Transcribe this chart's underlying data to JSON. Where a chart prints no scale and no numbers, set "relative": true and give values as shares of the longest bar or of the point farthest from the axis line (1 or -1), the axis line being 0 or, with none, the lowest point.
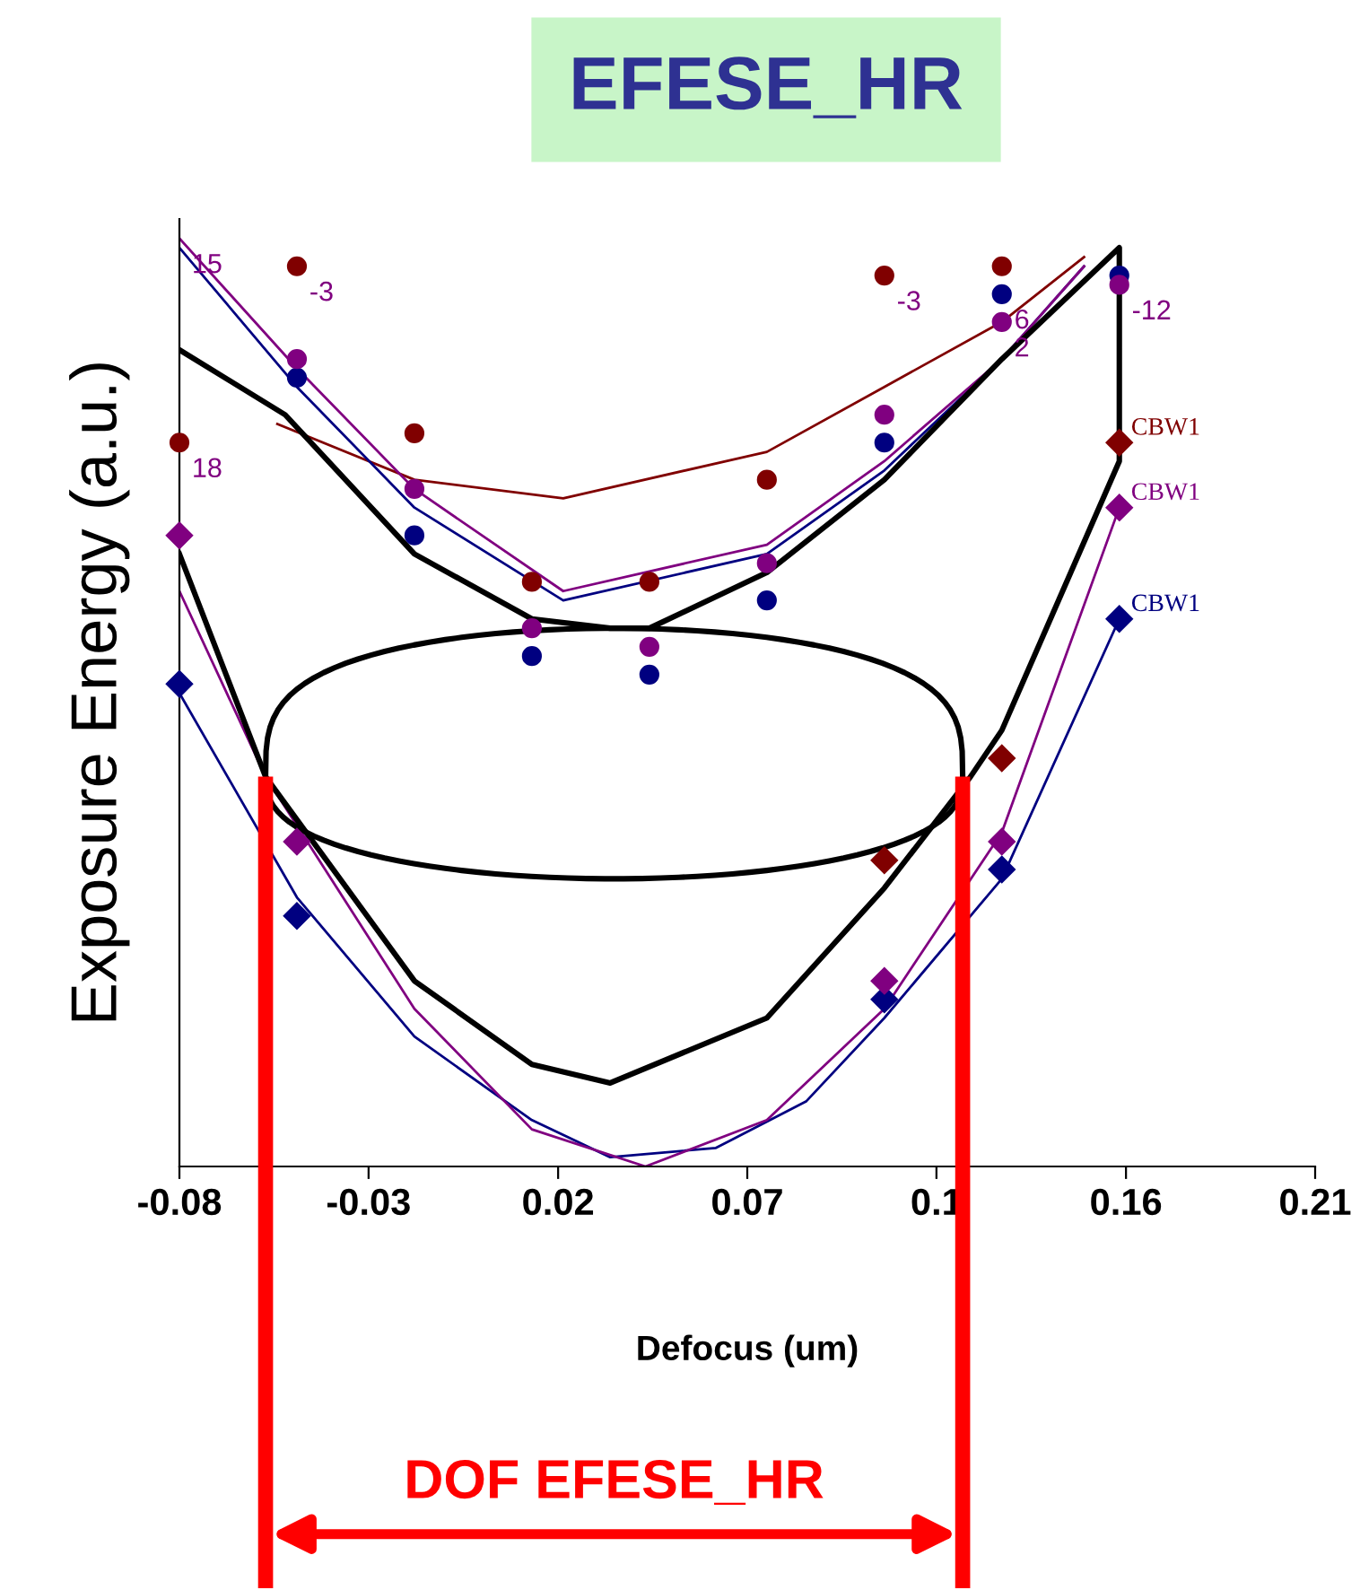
{
  "chart_data": {
    "type": "scatter",
    "title": "EFESE_HR",
    "xlabel": "Defocus (um)",
    "ylabel": "Exposure Energy (a.u.)",
    "relative": true,
    "xlim": [
      -0.08,
      0.21
    ],
    "xticks": [
      {
        "value": -0.08,
        "label": "-0.08"
      },
      {
        "value": -0.0317,
        "label": "-0.03"
      },
      {
        "value": 0.0167,
        "label": "0.02"
      },
      {
        "value": 0.065,
        "label": "0.07"
      },
      {
        "value": 0.1133,
        "label": "0.1"
      },
      {
        "value": 0.1617,
        "label": "0.16"
      },
      {
        "value": 0.21,
        "label": "0.21"
      }
    ],
    "tick_labels": "x",
    "series": [
      {
        "marker": "circle",
        "color": "#800000",
        "x": [
          -0.08,
          -0.05,
          -0.02,
          0.01,
          0.04,
          0.07,
          0.1,
          0.13
        ],
        "values": [
          0.78,
          0.97,
          0.79,
          0.63,
          0.63,
          0.74,
          0.96,
          0.97
        ]
      },
      {
        "marker": "circle",
        "color": "#000080",
        "x": [
          -0.05,
          -0.02,
          0.01,
          0.04,
          0.07,
          0.1,
          0.13,
          0.16
        ],
        "values": [
          0.85,
          0.68,
          0.55,
          0.53,
          0.61,
          0.78,
          0.94,
          0.96
        ]
      },
      {
        "marker": "circle",
        "color": "#800080",
        "x": [
          -0.05,
          -0.02,
          0.01,
          0.04,
          0.07,
          0.1,
          0.13,
          0.16
        ],
        "values": [
          0.87,
          0.73,
          0.58,
          0.56,
          0.65,
          0.81,
          0.91,
          0.95
        ]
      },
      {
        "marker": "diamond",
        "name": "CBW1",
        "color": "#800000",
        "x": [
          0.1,
          0.13,
          0.16
        ],
        "values": [
          0.33,
          0.44,
          0.78
        ]
      },
      {
        "marker": "diamond",
        "name": "CBW1",
        "color": "#000080",
        "x": [
          -0.08,
          -0.05,
          0.1,
          0.13,
          0.16
        ],
        "values": [
          0.52,
          0.27,
          0.18,
          0.32,
          0.59
        ]
      },
      {
        "marker": "diamond",
        "name": "CBW1",
        "color": "#800080",
        "x": [
          -0.08,
          -0.05,
          0.1,
          0.13,
          0.16
        ],
        "values": [
          0.68,
          0.35,
          0.2,
          0.35,
          0.71
        ]
      },
      {
        "type": "line",
        "color": "#800000",
        "x": [
          -0.055,
          -0.02,
          0.018,
          0.07,
          0.1,
          0.13,
          0.151
        ],
        "values": [
          0.8,
          0.74,
          0.72,
          0.77,
          0.84,
          0.91,
          0.98
        ]
      },
      {
        "type": "line",
        "color": "#000080",
        "x": [
          -0.08,
          -0.05,
          -0.02,
          0.018,
          0.07,
          0.1,
          0.13,
          0.151
        ],
        "values": [
          0.99,
          0.84,
          0.71,
          0.61,
          0.66,
          0.75,
          0.87,
          0.97
        ]
      },
      {
        "type": "line",
        "color": "#800080",
        "x": [
          -0.08,
          -0.05,
          -0.02,
          0.018,
          0.07,
          0.1,
          0.13,
          0.151
        ],
        "values": [
          1.0,
          0.86,
          0.73,
          0.62,
          0.67,
          0.76,
          0.87,
          0.97
        ]
      },
      {
        "type": "line",
        "color": "#000080",
        "x": [
          -0.08,
          -0.05,
          -0.02,
          0.01,
          0.03,
          0.057,
          0.08,
          0.1,
          0.13,
          0.16
        ],
        "values": [
          0.51,
          0.29,
          0.14,
          0.05,
          0.01,
          0.02,
          0.07,
          0.16,
          0.31,
          0.59
        ]
      },
      {
        "type": "line",
        "color": "#800080",
        "x": [
          -0.08,
          -0.058,
          -0.02,
          0.01,
          0.039,
          0.07,
          0.1,
          0.13,
          0.16
        ],
        "values": [
          0.62,
          0.42,
          0.17,
          0.04,
          0.0,
          0.05,
          0.17,
          0.36,
          0.71
        ]
      },
      {
        "type": "line",
        "color": "#000000",
        "x": [
          -0.08,
          -0.053,
          -0.02,
          0.01,
          0.03,
          0.04,
          0.07,
          0.1,
          0.13,
          0.16,
          0.16,
          0.13,
          0.122,
          0.1,
          0.07,
          0.03,
          0.01,
          -0.02,
          -0.058,
          -0.08
        ],
        "values": [
          0.88,
          0.81,
          0.66,
          0.59,
          0.58,
          0.58,
          0.64,
          0.74,
          0.87,
          0.99,
          0.76,
          0.47,
          0.42,
          0.3,
          0.16,
          0.09,
          0.11,
          0.2,
          0.42,
          0.66
        ]
      }
    ],
    "annotations": [
      {
        "text": "15",
        "x": -0.08,
        "y": 1.0
      },
      {
        "text": "18",
        "x": -0.08,
        "y": 0.78
      },
      {
        "text": "-3",
        "x": -0.05,
        "y": 0.97
      },
      {
        "text": "-3",
        "x": 0.1,
        "y": 0.96
      },
      {
        "text": "6",
        "x": 0.13,
        "y": 0.94
      },
      {
        "text": "2",
        "x": 0.13,
        "y": 0.91
      },
      {
        "text": "-12",
        "x": 0.16,
        "y": 0.95
      },
      "DOF EFESE_HR"
    ],
    "ref_lines": [
      {
        "axis": "x",
        "value": -0.058,
        "color": "#ff0000"
      },
      {
        "axis": "x",
        "value": 0.12,
        "color": "#ff0000"
      }
    ]
  }
}
